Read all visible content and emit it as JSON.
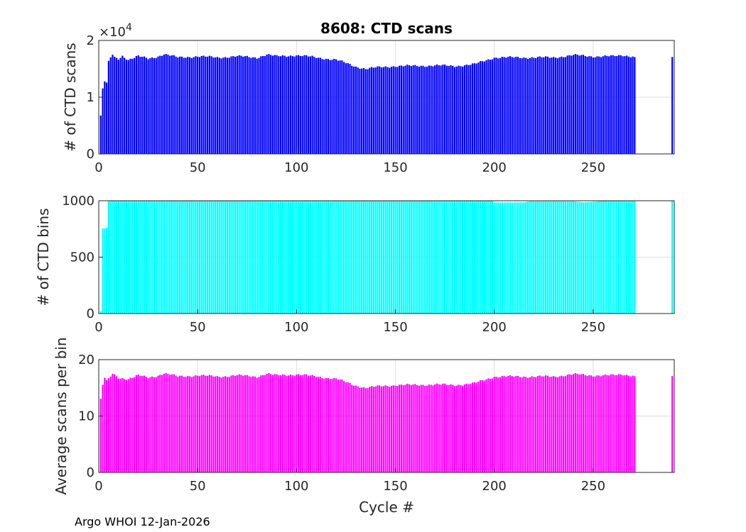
{
  "figure": {
    "title": "8608: CTD scans",
    "footer": "Argo WHOI 12-Jan-2026",
    "xlabel": "Cycle #"
  },
  "chart_data": [
    {
      "type": "bar",
      "ylabel": "# of CTD scans",
      "color": "#0000ff",
      "xlim": [
        0,
        291
      ],
      "ylim": [
        0,
        2
      ],
      "y_exponent_label": "×10",
      "y_exponent": "4",
      "x_ticks": [
        "0",
        "50",
        "100",
        "150",
        "200",
        "250"
      ],
      "y_ticks": [
        "0",
        "1",
        "2"
      ],
      "grid": true,
      "anchors": [
        [
          1,
          0.66
        ],
        [
          2,
          1.15
        ],
        [
          3,
          1.28
        ],
        [
          4,
          1.24
        ],
        [
          5,
          1.62
        ],
        [
          6,
          1.7
        ],
        [
          7,
          1.75
        ],
        [
          8,
          1.7
        ],
        [
          10,
          1.68
        ],
        [
          12,
          1.73
        ],
        [
          15,
          1.66
        ],
        [
          20,
          1.72
        ],
        [
          25,
          1.68
        ],
        [
          30,
          1.72
        ],
        [
          33,
          1.76
        ],
        [
          40,
          1.7
        ],
        [
          50,
          1.72
        ],
        [
          60,
          1.7
        ],
        [
          70,
          1.72
        ],
        [
          80,
          1.7
        ],
        [
          85,
          1.75
        ],
        [
          90,
          1.72
        ],
        [
          100,
          1.74
        ],
        [
          110,
          1.7
        ],
        [
          115,
          1.68
        ],
        [
          120,
          1.66
        ],
        [
          125,
          1.6
        ],
        [
          130,
          1.54
        ],
        [
          135,
          1.5
        ],
        [
          140,
          1.52
        ],
        [
          150,
          1.55
        ],
        [
          160,
          1.55
        ],
        [
          170,
          1.56
        ],
        [
          180,
          1.55
        ],
        [
          190,
          1.58
        ],
        [
          195,
          1.64
        ],
        [
          200,
          1.7
        ],
        [
          210,
          1.7
        ],
        [
          220,
          1.7
        ],
        [
          230,
          1.7
        ],
        [
          240,
          1.74
        ],
        [
          250,
          1.72
        ],
        [
          260,
          1.72
        ],
        [
          265,
          1.74
        ],
        [
          270,
          1.72
        ],
        [
          271,
          1.7
        ],
        [
          290,
          1.7
        ]
      ]
    },
    {
      "type": "bar",
      "ylabel": "# of CTD bins",
      "color": "#00ffff",
      "xlim": [
        0,
        291
      ],
      "ylim": [
        0,
        1000
      ],
      "x_ticks": [
        "0",
        "50",
        "100",
        "150",
        "200",
        "250"
      ],
      "y_ticks": [
        "0",
        "500",
        "1000"
      ],
      "grid": true,
      "anchors": [
        [
          1,
          20
        ],
        [
          2,
          755
        ],
        [
          3,
          755
        ],
        [
          4,
          760
        ],
        [
          5,
          1000
        ],
        [
          199,
          1000
        ],
        [
          200,
          985
        ],
        [
          215,
          985
        ],
        [
          218,
          995
        ],
        [
          240,
          995
        ],
        [
          245,
          985
        ],
        [
          250,
          990
        ],
        [
          255,
          1000
        ],
        [
          271,
          1000
        ],
        [
          290,
          1000
        ]
      ]
    },
    {
      "type": "bar",
      "ylabel": "Average scans per bin",
      "color": "#ff00ff",
      "xlim": [
        0,
        291
      ],
      "ylim": [
        0,
        20
      ],
      "x_ticks": [
        "0",
        "50",
        "100",
        "150",
        "200",
        "250"
      ],
      "y_ticks": [
        "0",
        "10",
        "20"
      ],
      "grid": true,
      "anchors": [
        [
          1,
          12.9
        ],
        [
          2,
          15.5
        ],
        [
          3,
          16.8
        ],
        [
          4,
          16.2
        ],
        [
          5,
          16.5
        ],
        [
          6,
          17
        ],
        [
          7,
          17.5
        ],
        [
          10,
          16.8
        ],
        [
          15,
          16.6
        ],
        [
          20,
          17.2
        ],
        [
          25,
          16.8
        ],
        [
          30,
          17.2
        ],
        [
          33,
          17.6
        ],
        [
          40,
          17
        ],
        [
          50,
          17.2
        ],
        [
          60,
          17
        ],
        [
          70,
          17.2
        ],
        [
          80,
          17
        ],
        [
          85,
          17.5
        ],
        [
          90,
          17.2
        ],
        [
          100,
          17.4
        ],
        [
          110,
          17
        ],
        [
          115,
          16.8
        ],
        [
          120,
          16.6
        ],
        [
          125,
          16
        ],
        [
          130,
          15.4
        ],
        [
          135,
          15
        ],
        [
          140,
          15.2
        ],
        [
          150,
          15.5
        ],
        [
          160,
          15.5
        ],
        [
          170,
          15.6
        ],
        [
          180,
          15.5
        ],
        [
          190,
          15.8
        ],
        [
          195,
          16.4
        ],
        [
          200,
          17
        ],
        [
          210,
          17
        ],
        [
          220,
          17
        ],
        [
          230,
          17
        ],
        [
          240,
          17.4
        ],
        [
          250,
          17.2
        ],
        [
          260,
          17.2
        ],
        [
          265,
          17.4
        ],
        [
          270,
          17.2
        ],
        [
          271,
          17
        ],
        [
          290,
          17
        ]
      ]
    }
  ]
}
